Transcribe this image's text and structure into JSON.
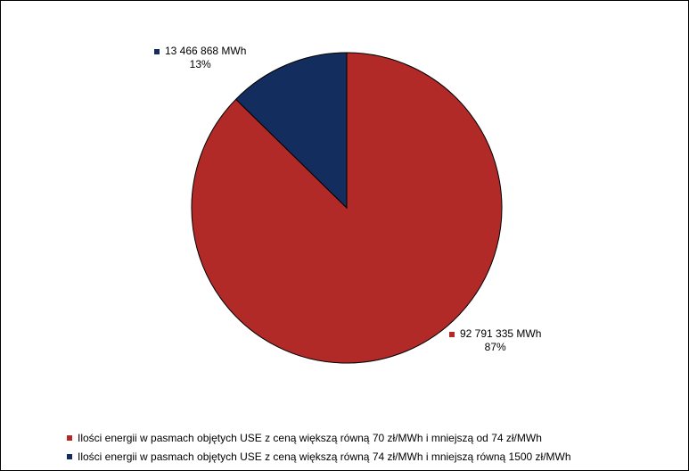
{
  "chart_data": {
    "type": "pie",
    "series": [
      {
        "name": "Ilości energii w pasmach objętych USE z ceną większą równą 70 zł/MWh i mniejszą od 74 zł/MWh",
        "value": 92791335,
        "value_label": "92 791 335 MWh",
        "percent_label": "87%",
        "color": "#B22A27"
      },
      {
        "name": "Ilości energii w pasmach objętych USE z ceną większą równą 74 zł/MWh i mniejszą równą 1500 zł/MWh",
        "value": 13466868,
        "value_label": "13 466 868 MWh",
        "percent_label": "13%",
        "color": "#132D5E"
      }
    ],
    "legend_position": "bottom",
    "grid": false
  }
}
